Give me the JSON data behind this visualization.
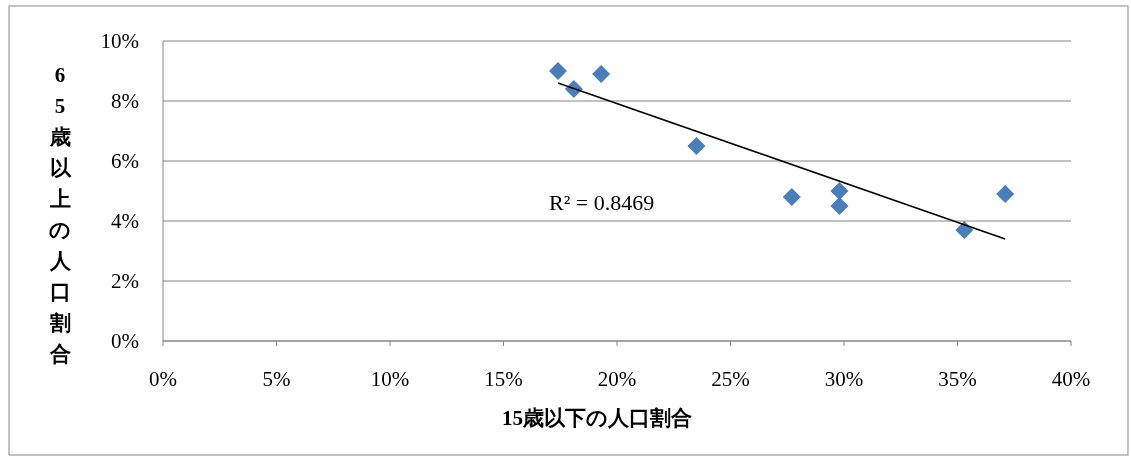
{
  "chart_data": {
    "type": "scatter",
    "xlabel": "15歳以下の人口割合",
    "ylabel": "65歳以上の人口割合",
    "xlim": [
      0,
      40
    ],
    "xticks": [
      {
        "value": 0,
        "label": "0%"
      },
      {
        "value": 5,
        "label": "5%"
      },
      {
        "value": 10,
        "label": "10%"
      },
      {
        "value": 15,
        "label": "15%"
      },
      {
        "value": 20,
        "label": "20%"
      },
      {
        "value": 25,
        "label": "25%"
      },
      {
        "value": 30,
        "label": "30%"
      },
      {
        "value": 35,
        "label": "35%"
      },
      {
        "value": 40,
        "label": "40%"
      }
    ],
    "ylim": [
      0,
      10
    ],
    "yticks": [
      {
        "value": 0,
        "label": "0%"
      },
      {
        "value": 2,
        "label": "2%"
      },
      {
        "value": 4,
        "label": "4%"
      },
      {
        "value": 6,
        "label": "6%"
      },
      {
        "value": 8,
        "label": "8%"
      },
      {
        "value": 10,
        "label": "10%"
      }
    ],
    "grid": "y",
    "series": [
      {
        "marker": "diamond",
        "color": "#4a7ebb",
        "x": [
          17.4,
          18.1,
          19.3,
          23.5,
          27.7,
          29.8,
          29.8,
          35.3,
          37.1
        ],
        "values": [
          9.0,
          8.4,
          8.9,
          6.5,
          4.8,
          5.0,
          4.5,
          3.7,
          4.9
        ]
      },
      {
        "type": "line",
        "marker": "none",
        "color": "#000000",
        "x": [
          17.4,
          37.1
        ],
        "values": [
          8.6,
          3.4
        ]
      }
    ],
    "annotations": [
      "R² = 0.8469"
    ]
  }
}
